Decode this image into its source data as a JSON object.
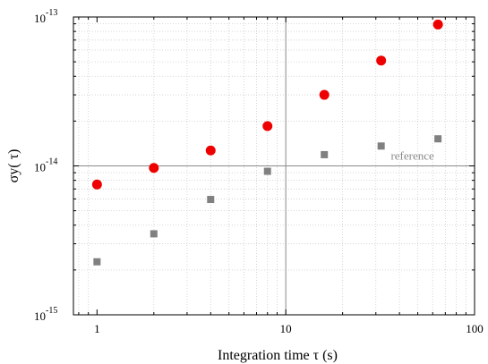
{
  "chart_data": {
    "type": "scatter",
    "title": "",
    "xlabel": "Integration time τ (s)",
    "ylabel": "σy( τ)",
    "x_scale": "log",
    "y_scale": "log",
    "xlim": [
      0.75,
      100
    ],
    "ylim": [
      1e-15,
      1e-13
    ],
    "grid": true,
    "x_ticks": [
      {
        "value": 1,
        "label": "1"
      },
      {
        "value": 10,
        "label": "10"
      },
      {
        "value": 100,
        "label": "100"
      }
    ],
    "y_ticks": [
      {
        "value": 1e-15,
        "base": "10",
        "exp": "-15"
      },
      {
        "value": 1e-14,
        "base": "10",
        "exp": "-14"
      },
      {
        "value": 1e-13,
        "base": "10",
        "exp": "-13"
      }
    ],
    "reference_line": {
      "x": 10,
      "y": 1e-14,
      "label": "reference"
    },
    "series": [
      {
        "marker": "circle",
        "color": "#ee0000",
        "x": [
          1,
          2,
          4,
          8,
          16,
          32,
          64
        ],
        "y": [
          7.5e-15,
          9.7e-15,
          1.27e-14,
          1.85e-14,
          3e-14,
          5.1e-14,
          8.9e-14
        ]
      },
      {
        "marker": "square",
        "color": "#808080",
        "x": [
          1,
          2,
          4,
          8,
          16,
          32,
          64
        ],
        "y": [
          2.27e-15,
          3.5e-15,
          5.95e-15,
          9.2e-15,
          1.19e-14,
          1.36e-14,
          1.52e-14
        ]
      }
    ]
  }
}
